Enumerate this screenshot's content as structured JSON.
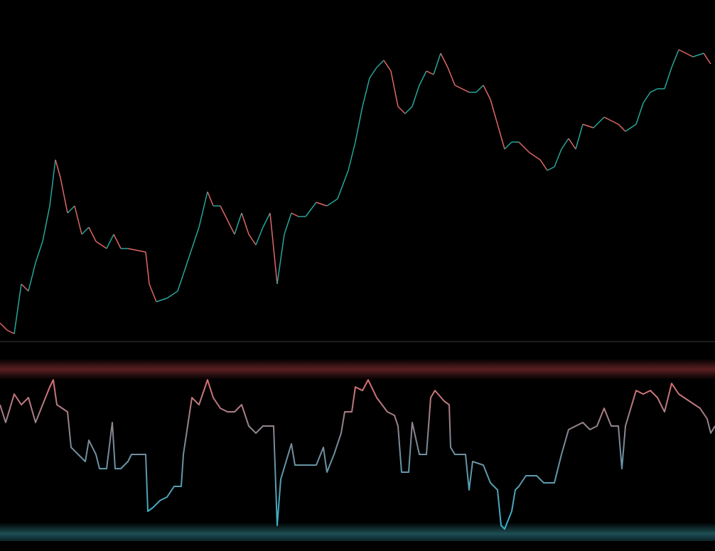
{
  "chart_data": [
    {
      "type": "line",
      "up_color": "#26a69a",
      "down_color": "#e06666",
      "xlim": [
        0,
        1006
      ],
      "ylim": [
        0,
        480
      ],
      "x": [
        0,
        10,
        20,
        30,
        40,
        50,
        60,
        70,
        78,
        85,
        95,
        105,
        115,
        125,
        135,
        150,
        160,
        170,
        180,
        190,
        205,
        210,
        220,
        235,
        250,
        260,
        270,
        280,
        292,
        300,
        310,
        320,
        330,
        340,
        350,
        360,
        370,
        380,
        390,
        400,
        410,
        420,
        430,
        445,
        460,
        475,
        490,
        500,
        510,
        520,
        530,
        540,
        550,
        560,
        570,
        580,
        590,
        600,
        610,
        620,
        630,
        640,
        650,
        660,
        670,
        680,
        690,
        700,
        710,
        720,
        730,
        745,
        760,
        770,
        780,
        790,
        800,
        810,
        820,
        835,
        850,
        860,
        870,
        880,
        895,
        905,
        915,
        925,
        935,
        945,
        955,
        965,
        975,
        990,
        1000
      ],
      "values": [
        25,
        15,
        10,
        80,
        70,
        110,
        140,
        190,
        255,
        230,
        180,
        190,
        150,
        160,
        140,
        130,
        150,
        130,
        130,
        128,
        125,
        80,
        55,
        60,
        70,
        100,
        130,
        160,
        210,
        190,
        190,
        170,
        150,
        180,
        150,
        135,
        160,
        180,
        80,
        150,
        180,
        175,
        175,
        195,
        190,
        200,
        240,
        280,
        330,
        370,
        385,
        395,
        380,
        330,
        320,
        330,
        360,
        380,
        375,
        405,
        385,
        360,
        355,
        350,
        350,
        360,
        340,
        305,
        270,
        280,
        280,
        265,
        255,
        240,
        245,
        270,
        285,
        270,
        305,
        300,
        315,
        310,
        305,
        295,
        305,
        335,
        350,
        355,
        355,
        385,
        410,
        405,
        400,
        405,
        390
      ]
    },
    {
      "type": "line",
      "high_color": "#e07070",
      "low_color": "#3ab0c8",
      "xlim": [
        0,
        1006
      ],
      "ylim": [
        0,
        280
      ],
      "x": [
        0,
        8,
        20,
        30,
        40,
        50,
        60,
        70,
        75,
        80,
        95,
        100,
        110,
        120,
        125,
        135,
        140,
        150,
        158,
        162,
        170,
        180,
        185,
        195,
        205,
        208,
        215,
        225,
        235,
        245,
        255,
        258,
        270,
        280,
        292,
        300,
        310,
        320,
        330,
        340,
        350,
        360,
        370,
        385,
        390,
        395,
        410,
        415,
        430,
        445,
        455,
        460,
        470,
        480,
        485,
        495,
        500,
        510,
        518,
        530,
        545,
        555,
        560,
        565,
        575,
        580,
        590,
        600,
        606,
        612,
        625,
        632,
        634,
        640,
        655,
        660,
        665,
        680,
        690,
        700,
        705,
        710,
        720,
        725,
        730,
        740,
        755,
        765,
        780,
        790,
        800,
        810,
        820,
        830,
        840,
        850,
        860,
        870,
        875,
        880,
        895,
        905,
        915,
        925,
        935,
        945,
        955,
        970,
        985,
        995,
        1000,
        1006
      ],
      "values": [
        200,
        175,
        215,
        200,
        210,
        175,
        200,
        225,
        235,
        200,
        190,
        140,
        130,
        120,
        150,
        130,
        110,
        110,
        175,
        110,
        110,
        120,
        130,
        130,
        130,
        50,
        55,
        65,
        70,
        85,
        85,
        130,
        210,
        200,
        235,
        210,
        195,
        190,
        190,
        200,
        170,
        160,
        170,
        170,
        30,
        95,
        145,
        115,
        115,
        115,
        140,
        105,
        130,
        160,
        190,
        190,
        225,
        220,
        235,
        210,
        190,
        185,
        170,
        105,
        105,
        175,
        130,
        130,
        210,
        220,
        205,
        200,
        140,
        130,
        130,
        80,
        120,
        115,
        90,
        80,
        30,
        25,
        50,
        80,
        85,
        100,
        100,
        90,
        90,
        130,
        165,
        170,
        175,
        165,
        170,
        195,
        170,
        170,
        110,
        170,
        220,
        215,
        220,
        210,
        190,
        230,
        215,
        205,
        195,
        180,
        160,
        170
      ]
    }
  ]
}
